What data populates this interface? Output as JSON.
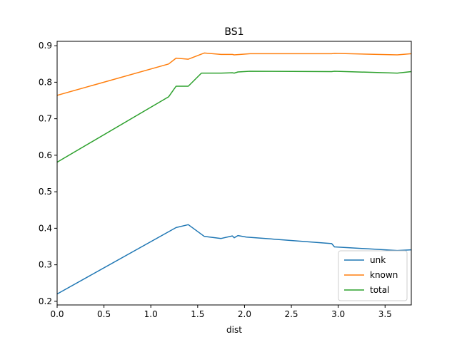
{
  "chart_data": {
    "type": "line",
    "title": "BS1",
    "xlabel": "dist",
    "ylabel": "",
    "xlim": [
      0,
      3.78
    ],
    "ylim": [
      0.19,
      0.912
    ],
    "xticks": [
      "0.0",
      "0.5",
      "1.0",
      "1.5",
      "2.0",
      "2.5",
      "3.0",
      "3.5"
    ],
    "xtick_values": [
      0,
      0.5,
      1.0,
      1.5,
      2.0,
      2.5,
      3.0,
      3.5
    ],
    "yticks": [
      "0.2",
      "0.3",
      "0.4",
      "0.5",
      "0.6",
      "0.7",
      "0.8",
      "0.9"
    ],
    "ytick_values": [
      0.2,
      0.3,
      0.4,
      0.5,
      0.6,
      0.7,
      0.8,
      0.9
    ],
    "grid": false,
    "legend_position": "bottom-right",
    "series": [
      {
        "name": "unk",
        "color": "#1f77b4",
        "x": [
          0.0,
          1.27,
          1.4,
          1.57,
          1.75,
          1.87,
          1.89,
          1.93,
          2.02,
          2.93,
          2.96,
          3.63,
          3.78
        ],
        "y": [
          0.22,
          0.402,
          0.41,
          0.378,
          0.372,
          0.379,
          0.374,
          0.38,
          0.376,
          0.358,
          0.349,
          0.339,
          0.341
        ]
      },
      {
        "name": "known",
        "color": "#ff7f0e",
        "x": [
          0.0,
          1.19,
          1.27,
          1.4,
          1.57,
          1.75,
          1.87,
          1.89,
          2.06,
          2.93,
          2.96,
          3.63,
          3.78
        ],
        "y": [
          0.764,
          0.85,
          0.866,
          0.863,
          0.88,
          0.876,
          0.876,
          0.875,
          0.878,
          0.878,
          0.879,
          0.875,
          0.878
        ]
      },
      {
        "name": "total",
        "color": "#2ca02c",
        "x": [
          0.0,
          1.19,
          1.27,
          1.4,
          1.54,
          1.75,
          1.87,
          1.89,
          1.93,
          2.06,
          2.93,
          2.96,
          3.63,
          3.78
        ],
        "y": [
          0.581,
          0.76,
          0.789,
          0.789,
          0.825,
          0.825,
          0.826,
          0.825,
          0.828,
          0.83,
          0.829,
          0.83,
          0.825,
          0.829
        ]
      }
    ]
  }
}
